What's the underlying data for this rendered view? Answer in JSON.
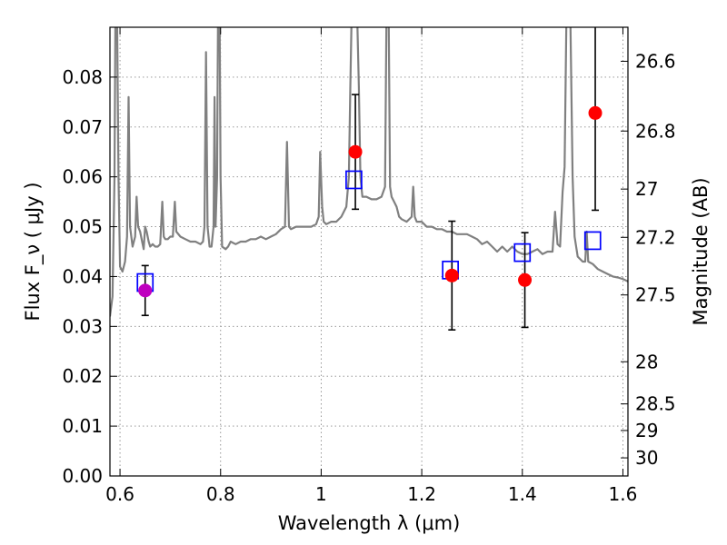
{
  "chart_data": {
    "type": "scatter",
    "xlabel": "Wavelength  λ (μm)",
    "ylabel": "Flux  F_ν  ( μJy )",
    "y2label": "Magnitude (AB)",
    "xlim": [
      0.58,
      1.61
    ],
    "ylim": [
      0.0,
      0.09
    ],
    "grid": true,
    "x_ticks": [
      0.6,
      0.8,
      1.0,
      1.2,
      1.4,
      1.6
    ],
    "x_tick_labels": [
      "0.6",
      "0.8",
      "1",
      "1.2",
      "1.4",
      "1.6"
    ],
    "y_ticks": [
      0.0,
      0.01,
      0.02,
      0.03,
      0.04,
      0.05,
      0.06,
      0.07,
      0.08
    ],
    "y_tick_labels": [
      "0.00",
      "0.01",
      "0.02",
      "0.03",
      "0.04",
      "0.05",
      "0.06",
      "0.07",
      "0.08"
    ],
    "mag_ticks": [
      26.6,
      26.8,
      27,
      27.2,
      27.5,
      28,
      28.5,
      29,
      30
    ],
    "mag_tick_labels": [
      "26.6",
      "26.8",
      "27",
      "27.2",
      "27.5",
      "28",
      "28.5",
      "29",
      "30"
    ],
    "colors": {
      "spectrum": "#808080",
      "observed": "#ff0000",
      "observed_first": "#bf00bf",
      "model": "#0000ff",
      "errorbar": "#000000",
      "grid": "#8c8c8c"
    },
    "observed": [
      {
        "x": 0.65,
        "y": 0.0372,
        "yerr_low": 0.005,
        "yerr_high": 0.005
      },
      {
        "x": 1.068,
        "y": 0.065,
        "yerr_low": 0.0115,
        "yerr_high": 0.0115
      },
      {
        "x": 1.26,
        "y": 0.0402,
        "yerr_low": 0.0109,
        "yerr_high": 0.0109
      },
      {
        "x": 1.405,
        "y": 0.0393,
        "yerr_low": 0.0095,
        "yerr_high": 0.0095
      },
      {
        "x": 1.545,
        "y": 0.0728,
        "yerr_low": 0.0195,
        "yerr_high": 0.0195
      }
    ],
    "model": [
      {
        "x": 0.65,
        "y": 0.0388
      },
      {
        "x": 1.065,
        "y": 0.0594
      },
      {
        "x": 1.257,
        "y": 0.0413
      },
      {
        "x": 1.4,
        "y": 0.0448
      },
      {
        "x": 1.54,
        "y": 0.0472
      }
    ],
    "spectrum": [
      [
        0.58,
        0.032
      ],
      [
        0.585,
        0.036
      ],
      [
        0.589,
        0.06
      ],
      [
        0.591,
        0.095
      ],
      [
        0.594,
        0.095
      ],
      [
        0.597,
        0.06
      ],
      [
        0.6,
        0.042
      ],
      [
        0.605,
        0.041
      ],
      [
        0.61,
        0.043
      ],
      [
        0.614,
        0.048
      ],
      [
        0.617,
        0.076
      ],
      [
        0.62,
        0.05
      ],
      [
        0.625,
        0.046
      ],
      [
        0.63,
        0.048
      ],
      [
        0.633,
        0.056
      ],
      [
        0.636,
        0.05
      ],
      [
        0.64,
        0.049
      ],
      [
        0.644,
        0.047
      ],
      [
        0.647,
        0.0455
      ],
      [
        0.65,
        0.05
      ],
      [
        0.653,
        0.049
      ],
      [
        0.657,
        0.047
      ],
      [
        0.66,
        0.046
      ],
      [
        0.665,
        0.0465
      ],
      [
        0.67,
        0.046
      ],
      [
        0.675,
        0.046
      ],
      [
        0.68,
        0.0465
      ],
      [
        0.684,
        0.055
      ],
      [
        0.687,
        0.048
      ],
      [
        0.69,
        0.0475
      ],
      [
        0.695,
        0.0475
      ],
      [
        0.7,
        0.048
      ],
      [
        0.705,
        0.048
      ],
      [
        0.709,
        0.055
      ],
      [
        0.712,
        0.049
      ],
      [
        0.72,
        0.048
      ],
      [
        0.73,
        0.0475
      ],
      [
        0.74,
        0.047
      ],
      [
        0.75,
        0.047
      ],
      [
        0.76,
        0.0465
      ],
      [
        0.765,
        0.047
      ],
      [
        0.768,
        0.05
      ],
      [
        0.771,
        0.085
      ],
      [
        0.774,
        0.05
      ],
      [
        0.778,
        0.046
      ],
      [
        0.782,
        0.046
      ],
      [
        0.786,
        0.05
      ],
      [
        0.788,
        0.076
      ],
      [
        0.79,
        0.05
      ],
      [
        0.793,
        0.06
      ],
      [
        0.795,
        0.095
      ],
      [
        0.798,
        0.095
      ],
      [
        0.8,
        0.06
      ],
      [
        0.803,
        0.046
      ],
      [
        0.81,
        0.0455
      ],
      [
        0.815,
        0.046
      ],
      [
        0.82,
        0.047
      ],
      [
        0.83,
        0.0465
      ],
      [
        0.84,
        0.047
      ],
      [
        0.85,
        0.047
      ],
      [
        0.86,
        0.0475
      ],
      [
        0.87,
        0.0475
      ],
      [
        0.88,
        0.048
      ],
      [
        0.89,
        0.0475
      ],
      [
        0.9,
        0.048
      ],
      [
        0.91,
        0.0485
      ],
      [
        0.92,
        0.0495
      ],
      [
        0.928,
        0.05
      ],
      [
        0.932,
        0.067
      ],
      [
        0.936,
        0.05
      ],
      [
        0.94,
        0.0495
      ],
      [
        0.95,
        0.05
      ],
      [
        0.96,
        0.05
      ],
      [
        0.97,
        0.05
      ],
      [
        0.98,
        0.05
      ],
      [
        0.99,
        0.0505
      ],
      [
        0.995,
        0.052
      ],
      [
        0.998,
        0.065
      ],
      [
        1.002,
        0.054
      ],
      [
        1.005,
        0.051
      ],
      [
        1.01,
        0.0505
      ],
      [
        1.02,
        0.051
      ],
      [
        1.03,
        0.051
      ],
      [
        1.04,
        0.052
      ],
      [
        1.05,
        0.054
      ],
      [
        1.055,
        0.06
      ],
      [
        1.058,
        0.078
      ],
      [
        1.061,
        0.095
      ],
      [
        1.065,
        0.095
      ],
      [
        1.068,
        0.095
      ],
      [
        1.071,
        0.095
      ],
      [
        1.075,
        0.078
      ],
      [
        1.078,
        0.06
      ],
      [
        1.082,
        0.056
      ],
      [
        1.09,
        0.056
      ],
      [
        1.1,
        0.0555
      ],
      [
        1.11,
        0.0555
      ],
      [
        1.12,
        0.056
      ],
      [
        1.127,
        0.058
      ],
      [
        1.13,
        0.095
      ],
      [
        1.134,
        0.095
      ],
      [
        1.137,
        0.058
      ],
      [
        1.14,
        0.056
      ],
      [
        1.145,
        0.055
      ],
      [
        1.15,
        0.054
      ],
      [
        1.155,
        0.052
      ],
      [
        1.16,
        0.0515
      ],
      [
        1.17,
        0.051
      ],
      [
        1.18,
        0.052
      ],
      [
        1.183,
        0.058
      ],
      [
        1.186,
        0.052
      ],
      [
        1.19,
        0.051
      ],
      [
        1.2,
        0.051
      ],
      [
        1.21,
        0.05
      ],
      [
        1.22,
        0.05
      ],
      [
        1.23,
        0.0495
      ],
      [
        1.24,
        0.0495
      ],
      [
        1.25,
        0.049
      ],
      [
        1.26,
        0.049
      ],
      [
        1.27,
        0.0485
      ],
      [
        1.28,
        0.0485
      ],
      [
        1.29,
        0.0485
      ],
      [
        1.3,
        0.048
      ],
      [
        1.31,
        0.0475
      ],
      [
        1.32,
        0.0465
      ],
      [
        1.33,
        0.047
      ],
      [
        1.34,
        0.046
      ],
      [
        1.35,
        0.045
      ],
      [
        1.36,
        0.046
      ],
      [
        1.37,
        0.045
      ],
      [
        1.38,
        0.046
      ],
      [
        1.39,
        0.045
      ],
      [
        1.4,
        0.0445
      ],
      [
        1.41,
        0.0445
      ],
      [
        1.42,
        0.045
      ],
      [
        1.43,
        0.0455
      ],
      [
        1.44,
        0.0445
      ],
      [
        1.45,
        0.045
      ],
      [
        1.46,
        0.045
      ],
      [
        1.465,
        0.053
      ],
      [
        1.47,
        0.0465
      ],
      [
        1.475,
        0.046
      ],
      [
        1.48,
        0.057
      ],
      [
        1.484,
        0.062
      ],
      [
        1.488,
        0.095
      ],
      [
        1.495,
        0.095
      ],
      [
        1.5,
        0.06
      ],
      [
        1.504,
        0.048
      ],
      [
        1.51,
        0.044
      ],
      [
        1.52,
        0.043
      ],
      [
        1.525,
        0.043
      ],
      [
        1.528,
        0.049
      ],
      [
        1.531,
        0.043
      ],
      [
        1.54,
        0.0425
      ],
      [
        1.55,
        0.0415
      ],
      [
        1.56,
        0.041
      ],
      [
        1.57,
        0.0405
      ],
      [
        1.58,
        0.04
      ],
      [
        1.59,
        0.0398
      ],
      [
        1.6,
        0.0395
      ],
      [
        1.61,
        0.039
      ]
    ]
  }
}
